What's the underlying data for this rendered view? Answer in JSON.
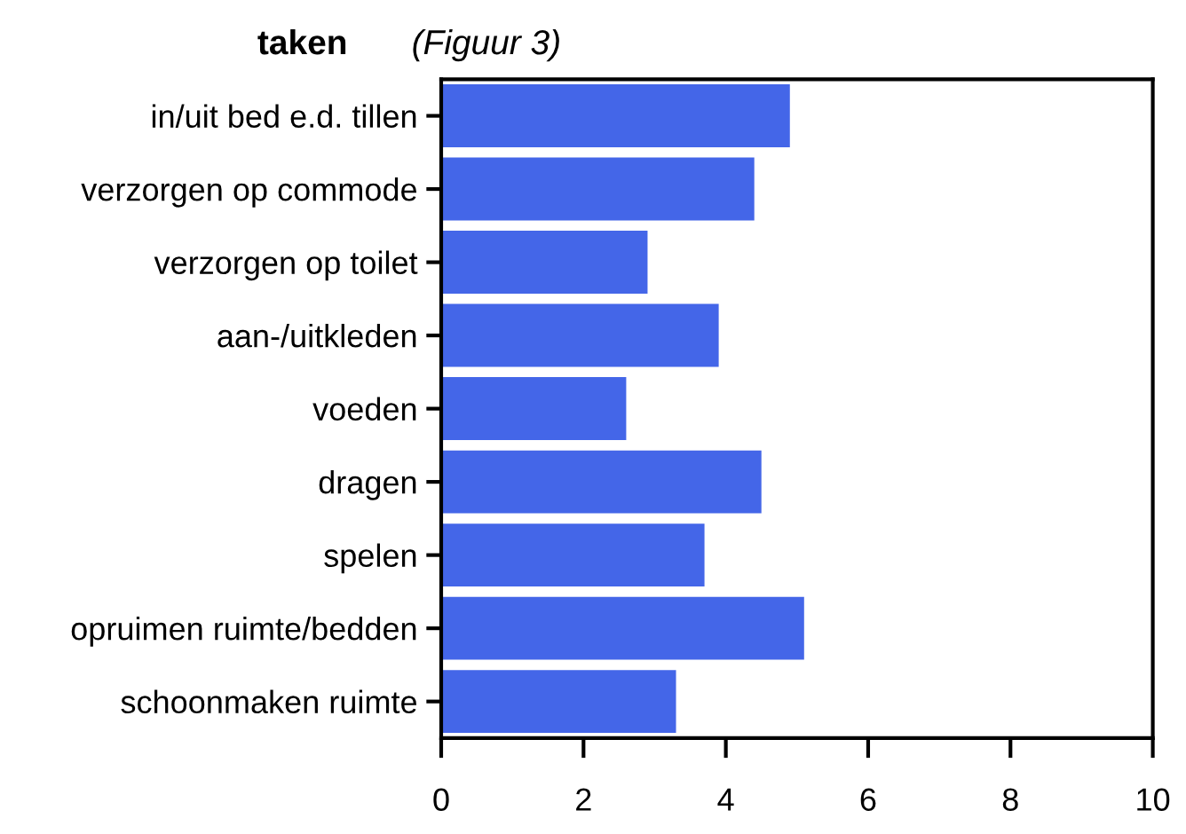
{
  "chart_data": {
    "type": "bar",
    "orientation": "horizontal",
    "title": "taken",
    "subtitle": "(Figuur 3)",
    "categories": [
      "in/uit bed e.d. tillen",
      "verzorgen op commode",
      "verzorgen op toilet",
      "aan-/uitkleden",
      "voeden",
      "dragen",
      "spelen",
      "opruimen ruimte/bedden",
      "schoonmaken ruimte"
    ],
    "values": [
      4.9,
      4.4,
      2.9,
      3.9,
      2.6,
      4.5,
      3.7,
      5.1,
      3.3
    ],
    "color": "#4466e8",
    "xlim": [
      0,
      10
    ],
    "xticks": [
      0,
      2,
      4,
      6,
      8,
      10
    ],
    "grid": false
  }
}
